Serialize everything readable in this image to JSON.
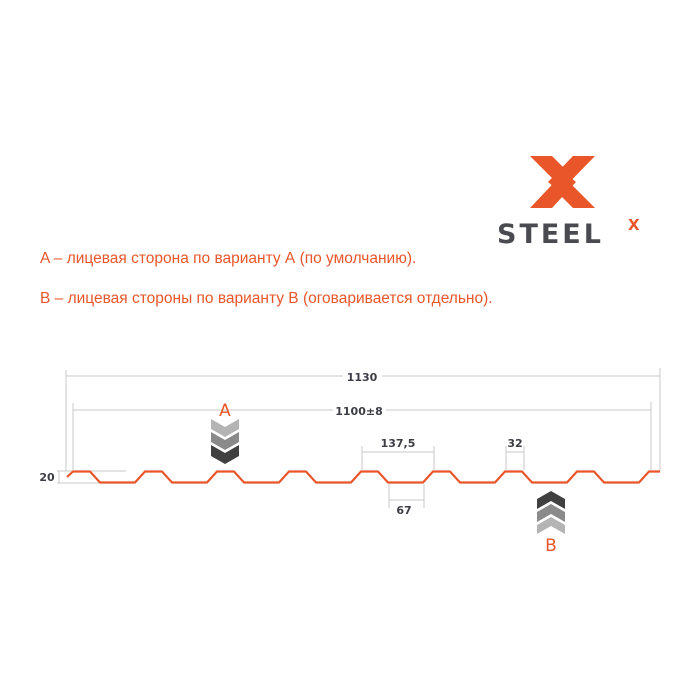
{
  "logo": {
    "text": "STEEL",
    "superscript": "X",
    "brand_color": "#e8562a",
    "text_color": "#4a4b50"
  },
  "captions": [
    "A – лицевая сторона по варианту А (по умолчанию).",
    "B – лицевая стороны по варианту B (оговаривается отдельно)."
  ],
  "diagram": {
    "profile_color": "#e8562a",
    "dimensions": {
      "total_width": "1130",
      "useful_width": "1100±8",
      "height": "20",
      "pitch": "137,5",
      "rib_top": "32",
      "rib_bottom": "67"
    },
    "face_a_label": "A",
    "face_b_label": "B"
  }
}
